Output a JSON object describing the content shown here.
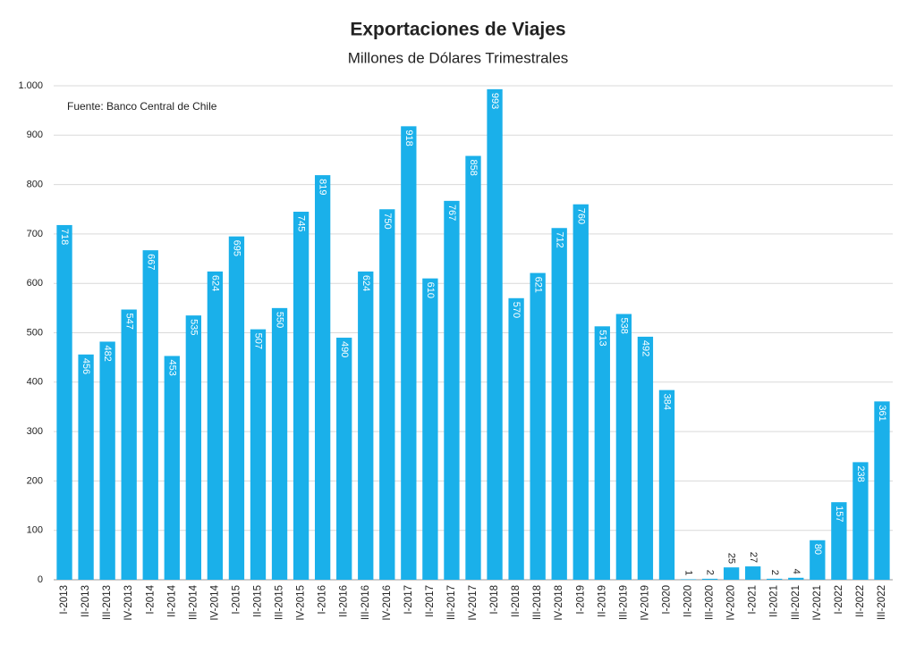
{
  "chart_data": {
    "type": "bar",
    "title": "Exportaciones de Viajes",
    "subtitle": "Millones de Dólares Trimestrales",
    "annotation": "Fuente: Banco Central de Chile",
    "categories": [
      "I-2013",
      "II-2013",
      "III-2013",
      "IV-2013",
      "I-2014",
      "II-2014",
      "III-2014",
      "IV-2014",
      "I-2015",
      "II-2015",
      "III-2015",
      "IV-2015",
      "I-2016",
      "II-2016",
      "III-2016",
      "IV-2016",
      "I-2017",
      "II-2017",
      "III-2017",
      "IV-2017",
      "I-2018",
      "II-2018",
      "III-2018",
      "IV-2018",
      "I-2019",
      "II-2019",
      "III-2019",
      "IV-2019",
      "I-2020",
      "II-2020",
      "III-2020",
      "IV-2020",
      "I-2021",
      "II-2021",
      "III-2021",
      "IV-2021",
      "I-2022",
      "II-2022",
      "III-2022"
    ],
    "values": [
      718,
      456,
      482,
      547,
      667,
      453,
      535,
      624,
      695,
      507,
      550,
      745,
      819,
      490,
      624,
      750,
      918,
      610,
      767,
      858,
      993,
      570,
      621,
      712,
      760,
      513,
      538,
      492,
      384,
      1,
      2,
      25,
      27,
      2,
      4,
      80,
      157,
      238,
      361
    ],
    "color": "#1ab0ea",
    "ylim": [
      0,
      1000
    ],
    "yticks": [
      0,
      100,
      200,
      300,
      400,
      500,
      600,
      700,
      800,
      900,
      {
        "value": 1000,
        "label": "1.000"
      }
    ],
    "grid": true
  }
}
